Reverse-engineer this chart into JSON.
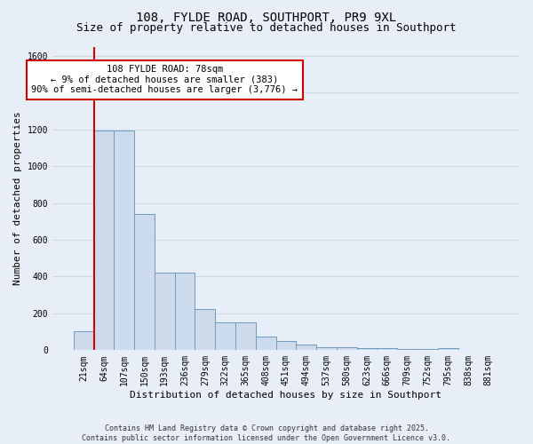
{
  "title": "108, FYLDE ROAD, SOUTHPORT, PR9 9XL",
  "subtitle": "Size of property relative to detached houses in Southport",
  "xlabel": "Distribution of detached houses by size in Southport",
  "ylabel": "Number of detached properties",
  "categories": [
    "21sqm",
    "64sqm",
    "107sqm",
    "150sqm",
    "193sqm",
    "236sqm",
    "279sqm",
    "322sqm",
    "365sqm",
    "408sqm",
    "451sqm",
    "494sqm",
    "537sqm",
    "580sqm",
    "623sqm",
    "666sqm",
    "709sqm",
    "752sqm",
    "795sqm",
    "838sqm",
    "881sqm"
  ],
  "values": [
    105,
    1195,
    1195,
    740,
    420,
    420,
    225,
    150,
    150,
    75,
    50,
    30,
    15,
    15,
    10,
    10,
    5,
    5,
    10,
    0,
    0
  ],
  "bar_color": "#ccdaec",
  "bar_edge_color": "#7099bb",
  "vline_color": "#cc0000",
  "vline_x": 1,
  "annotation_line1": "108 FYLDE ROAD: 78sqm",
  "annotation_line2": "← 9% of detached houses are smaller (383)",
  "annotation_line3": "90% of semi-detached houses are larger (3,776) →",
  "annotation_box_facecolor": "#ffffff",
  "annotation_box_edgecolor": "#cc0000",
  "ylim": [
    0,
    1650
  ],
  "yticks": [
    0,
    200,
    400,
    600,
    800,
    1000,
    1200,
    1400,
    1600
  ],
  "bg_color": "#e8eef7",
  "grid_color": "#d0d8e8",
  "footer": "Contains HM Land Registry data © Crown copyright and database right 2025.\nContains public sector information licensed under the Open Government Licence v3.0.",
  "title_fontsize": 10,
  "subtitle_fontsize": 9,
  "axis_label_fontsize": 8,
  "tick_fontsize": 7,
  "footer_fontsize": 6,
  "annotation_fontsize": 7.5
}
